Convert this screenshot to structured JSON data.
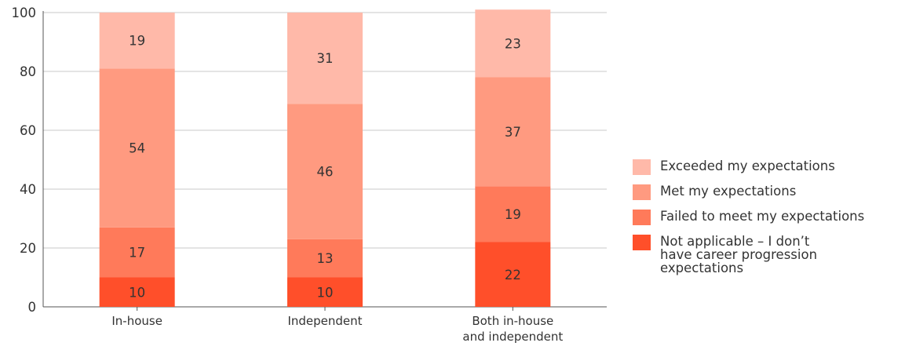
{
  "chart_data": {
    "type": "bar",
    "stacked": true,
    "categories": [
      "In-house",
      "Independent",
      "Both in-house\nand independent"
    ],
    "series": [
      {
        "name": "Not applicable – I don’t have career progression expectations",
        "values": [
          10,
          10,
          22
        ],
        "color": "#ff4f2a"
      },
      {
        "name": "Failed to meet my expectations",
        "values": [
          17,
          13,
          19
        ],
        "color": "#ff7a5a"
      },
      {
        "name": "Met my expectations",
        "values": [
          54,
          46,
          37
        ],
        "color": "#ff9a80"
      },
      {
        "name": "Exceeded my expectations",
        "values": [
          19,
          31,
          23
        ],
        "color": "#ffb9a9"
      }
    ],
    "ylim": [
      0,
      100
    ],
    "yticks": [
      "0",
      "20",
      "40",
      "60",
      "80",
      "100"
    ],
    "grid": true,
    "legend_position": "right"
  },
  "legend": [
    {
      "label": "Exceeded my expectations",
      "color": "#ffb9a9"
    },
    {
      "label": "Met my expectations",
      "color": "#ff9a80"
    },
    {
      "label": "Failed to meet my expectations",
      "color": "#ff7a5a"
    },
    {
      "label": "Not applicable – I don’t have career progression expectations",
      "color": "#ff4f2a"
    }
  ]
}
